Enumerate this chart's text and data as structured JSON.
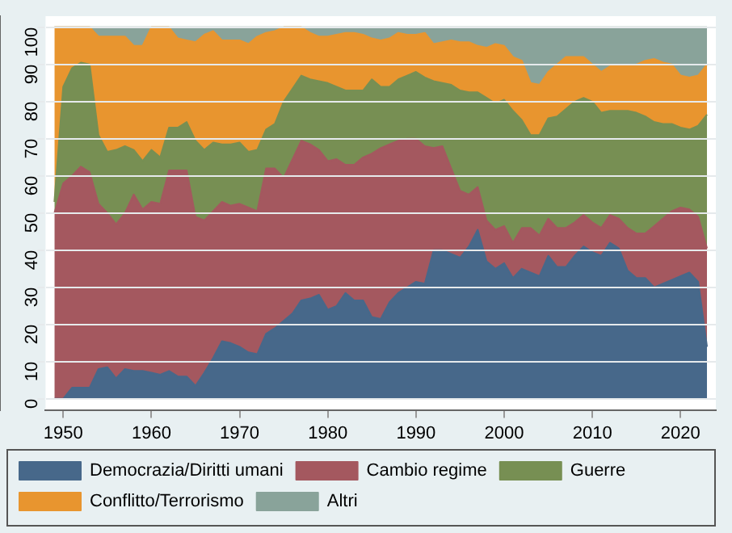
{
  "chart_data": {
    "type": "area",
    "stacked": true,
    "legend": "bottom",
    "grid": "y",
    "x": [
      1949,
      1950,
      1951,
      1952,
      1953,
      1954,
      1955,
      1956,
      1957,
      1958,
      1959,
      1960,
      1961,
      1962,
      1963,
      1964,
      1965,
      1966,
      1967,
      1968,
      1969,
      1970,
      1971,
      1972,
      1973,
      1974,
      1975,
      1976,
      1977,
      1978,
      1979,
      1980,
      1981,
      1982,
      1983,
      1984,
      1985,
      1986,
      1987,
      1988,
      1989,
      1990,
      1991,
      1992,
      1993,
      1994,
      1995,
      1996,
      1997,
      1998,
      1999,
      2000,
      2001,
      2002,
      2003,
      2004,
      2005,
      2006,
      2007,
      2008,
      2009,
      2010,
      2011,
      2012,
      2013,
      2014,
      2015,
      2016,
      2017,
      2018,
      2019,
      2020,
      2021,
      2022,
      2023
    ],
    "xlim": [
      1948,
      2024
    ],
    "xticks": [
      1950,
      1960,
      1970,
      1980,
      1990,
      2000,
      2010,
      2020
    ],
    "ylim": [
      -3,
      103
    ],
    "yticks": [
      0,
      10,
      20,
      30,
      40,
      50,
      60,
      70,
      80,
      90,
      100
    ],
    "series": [
      {
        "name": "Democrazia/Diritti umani",
        "color": "#47688a",
        "values": [
          0,
          0,
          3,
          3,
          3,
          8,
          8.5,
          5.5,
          8,
          7.5,
          7.5,
          7,
          6.5,
          7.5,
          6,
          6,
          3.5,
          7,
          11,
          15.5,
          15,
          14,
          12.5,
          12,
          17.5,
          19,
          21,
          23,
          26.5,
          27,
          28,
          24,
          25,
          28.5,
          26.5,
          26.5,
          22,
          21.5,
          26,
          28.5,
          30,
          31.5,
          31,
          40,
          40,
          39,
          38,
          41,
          45.5,
          37,
          35,
          36.5,
          32.5,
          35,
          34,
          33,
          38.5,
          35.5,
          35.5,
          38.5,
          41,
          39.5,
          38.5,
          42,
          40.5,
          34.5,
          32.5,
          32.5,
          30,
          31,
          32,
          33,
          34,
          31.5,
          14
        ]
      },
      {
        "name": "Cambio regime",
        "color": "#a4585f",
        "values": [
          50,
          58,
          57,
          59.5,
          58,
          44.5,
          41.5,
          41.5,
          42,
          47.5,
          43.5,
          46,
          46,
          54,
          55.5,
          55.5,
          45.5,
          41,
          39.5,
          37.5,
          37,
          38.5,
          39,
          38.5,
          44.5,
          43,
          38.5,
          41.5,
          43,
          41.5,
          39,
          40,
          39.5,
          34.5,
          36.5,
          38.5,
          44,
          46,
          42.5,
          41,
          40,
          38.5,
          37,
          27.5,
          28,
          23,
          18,
          14,
          11.5,
          11,
          10.5,
          10,
          9.5,
          11,
          12,
          11,
          10,
          10.5,
          10.5,
          9,
          8.5,
          8,
          7.5,
          7.5,
          8,
          11.5,
          12,
          12,
          16.5,
          17.5,
          18.5,
          18.5,
          17,
          17.5,
          26.5
        ]
      },
      {
        "name": "Guerre",
        "color": "#778f53",
        "values": [
          3,
          26,
          29,
          28,
          29,
          18.5,
          16.5,
          20,
          18,
          12,
          13,
          14,
          12.5,
          11.5,
          11.5,
          13,
          20.5,
          19,
          18.5,
          15.5,
          16.5,
          16.5,
          15,
          16.5,
          10.5,
          12,
          20.5,
          19,
          17.5,
          17.5,
          18.5,
          21,
          19.5,
          20,
          20,
          18,
          20,
          16.5,
          15.5,
          16.5,
          17,
          18,
          18.5,
          18,
          17,
          22.5,
          27,
          27.5,
          25.5,
          33,
          34,
          34,
          35.5,
          29,
          25,
          27,
          27,
          30,
          32,
          32.5,
          31.5,
          32.5,
          31,
          28,
          29,
          31.5,
          32.5,
          31.5,
          28,
          25.5,
          23.5,
          21.5,
          21.5,
          24.5,
          36
        ]
      },
      {
        "name": "Conflitto/Terrorismo",
        "color": "#e8952f",
        "values": [
          47,
          16,
          11,
          9.5,
          10,
          26.5,
          31,
          30.5,
          29.5,
          28,
          31,
          33,
          35,
          27,
          24,
          22,
          26.5,
          31,
          30,
          28,
          28,
          27.5,
          29,
          30.5,
          26,
          25,
          20,
          16.5,
          13,
          12.5,
          12,
          12.5,
          14,
          15.5,
          15.5,
          15,
          11,
          12.5,
          13,
          12.5,
          11,
          10,
          12,
          10,
          11,
          12,
          13,
          13.5,
          12.5,
          13.5,
          16,
          14.5,
          14.5,
          16,
          14,
          13.5,
          12.5,
          14,
          14,
          12,
          11,
          10,
          11,
          12,
          12,
          12,
          13,
          15,
          17,
          16.5,
          16,
          14,
          14,
          13.5,
          13.5
        ]
      },
      {
        "name": "Altri",
        "color": "#89a39a",
        "values": [
          0,
          0,
          0,
          0,
          0,
          2.5,
          2.5,
          2.5,
          2.5,
          5,
          5,
          0,
          0,
          0,
          3,
          3.5,
          4,
          2,
          1,
          3.5,
          3.5,
          3.5,
          4.5,
          2.5,
          1.5,
          1,
          0,
          0,
          0,
          1.5,
          2.5,
          2.5,
          2,
          1.5,
          1.5,
          2,
          3,
          3.5,
          3,
          1.5,
          2,
          2,
          1.5,
          4.5,
          4,
          3.5,
          4,
          4,
          5,
          5.5,
          4.5,
          5,
          8,
          9,
          15,
          15.5,
          12,
          10,
          8,
          8,
          8,
          10,
          12,
          10.5,
          10.5,
          10.5,
          10,
          9,
          8.5,
          9.5,
          10,
          13,
          13.5,
          13,
          10
        ]
      }
    ]
  }
}
